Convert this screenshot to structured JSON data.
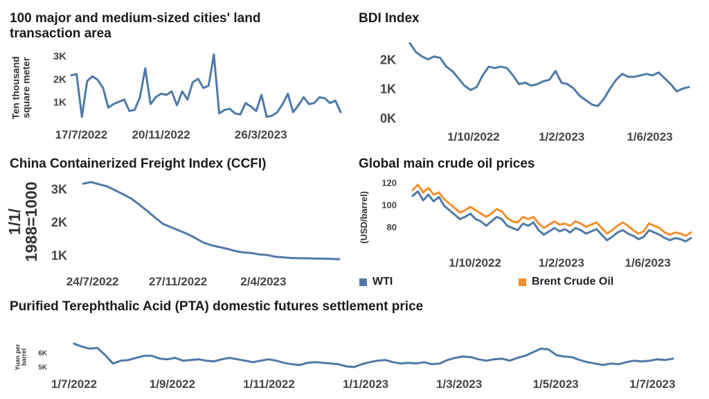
{
  "colors": {
    "blue": "#4e79a7",
    "orange": "#f28e2b"
  },
  "chart_data": [
    {
      "id": "land",
      "type": "line",
      "title": "100 major and medium-sized cities' land transaction area",
      "ylabel": "Ten thousand square meter",
      "ylim": [
        300,
        3300
      ],
      "yticks": [
        1000,
        2000,
        3000
      ],
      "ytick_labels": [
        "1K",
        "2K",
        "3K"
      ],
      "xlim": [
        0,
        54
      ],
      "xticks": [
        2,
        18,
        38
      ],
      "xtick_labels": [
        "17/7/2022",
        "20/11/2022",
        "26/3/2023"
      ],
      "series": [
        {
          "values": [
            2200,
            2250,
            400,
            1950,
            2150,
            2000,
            1650,
            800,
            950,
            1050,
            1150,
            650,
            700,
            1250,
            2500,
            950,
            1250,
            1400,
            1350,
            1500,
            900,
            1500,
            1150,
            1900,
            2050,
            1650,
            1750,
            3100,
            550,
            700,
            750,
            550,
            500,
            1000,
            850,
            650,
            1350,
            400,
            450,
            600,
            950,
            1400,
            600,
            900,
            1250,
            950,
            1000,
            1250,
            1200,
            1000,
            1100,
            600
          ]
        }
      ]
    },
    {
      "id": "bdi",
      "type": "line",
      "title": "BDI Index",
      "ylabel": "",
      "ylim": [
        0,
        2850
      ],
      "yticks": [
        0,
        1000,
        2000
      ],
      "ytick_labels": [
        "0K",
        "1K",
        "2K"
      ],
      "xlim": [
        0,
        57
      ],
      "xticks": [
        13,
        31,
        49
      ],
      "xtick_labels": [
        "1/10/2022",
        "1/2/2023",
        "1/6/2023"
      ],
      "series": [
        {
          "values": [
            2600,
            2300,
            2150,
            2050,
            2150,
            2100,
            1800,
            1650,
            1400,
            1150,
            1000,
            1100,
            1500,
            1800,
            1750,
            1800,
            1750,
            1500,
            1200,
            1250,
            1150,
            1200,
            1300,
            1350,
            1650,
            1250,
            1200,
            1050,
            800,
            650,
            500,
            450,
            700,
            1050,
            1350,
            1550,
            1450,
            1450,
            1500,
            1550,
            1500,
            1600,
            1400,
            1200,
            950,
            1050,
            1100
          ]
        }
      ]
    },
    {
      "id": "ccfi",
      "type": "line",
      "title": "China Containerized Freight Index (CCFI)",
      "ylabel": "1/1/ 1988=1000",
      "ylim": [
        750,
        3350
      ],
      "yticks": [
        1000,
        2000,
        3000
      ],
      "ytick_labels": [
        "1K",
        "2K",
        "3K"
      ],
      "xlim": [
        0,
        54
      ],
      "xticks": [
        2,
        20,
        38
      ],
      "xtick_labels": [
        "24/7/2022",
        "27/11/2022",
        "2/4/2023"
      ],
      "series": [
        {
          "values": [
            3200,
            3250,
            3180,
            3120,
            3000,
            2880,
            2750,
            2570,
            2380,
            2170,
            1980,
            1880,
            1780,
            1680,
            1560,
            1420,
            1340,
            1280,
            1230,
            1160,
            1120,
            1100,
            1060,
            1040,
            990,
            970,
            950,
            945,
            940,
            935,
            930,
            925,
            915
          ]
        }
      ]
    },
    {
      "id": "oil",
      "type": "line",
      "title": "Global main crude oil prices",
      "ylabel": "(USD/barrel)",
      "ylim": [
        62,
        125
      ],
      "yticks": [
        80,
        100,
        120
      ],
      "ytick_labels": [
        "80",
        "100",
        "120"
      ],
      "xlim": [
        0,
        58
      ],
      "xticks": [
        13,
        31,
        49
      ],
      "xtick_labels": [
        "1/10/2022",
        "1/2/2023",
        "1/6/2023"
      ],
      "legend": [
        "WTI",
        "Brent Crude Oil"
      ],
      "series": [
        {
          "name": "WTI",
          "values": [
            109,
            113,
            105,
            110,
            104,
            108,
            100,
            96,
            92,
            88,
            90,
            93,
            88,
            86,
            82,
            86,
            90,
            88,
            82,
            80,
            78,
            84,
            82,
            85,
            78,
            74,
            77,
            80,
            77,
            79,
            76,
            80,
            78,
            75,
            77,
            79,
            74,
            69,
            72,
            76,
            78,
            75,
            73,
            70,
            72,
            78,
            76,
            74,
            71,
            69,
            71,
            70,
            68,
            71
          ]
        },
        {
          "name": "Brent Crude Oil",
          "values": [
            114,
            119,
            112,
            116,
            110,
            112,
            106,
            102,
            98,
            94,
            96,
            99,
            96,
            93,
            90,
            93,
            97,
            95,
            89,
            86,
            85,
            90,
            88,
            90,
            84,
            80,
            83,
            86,
            83,
            84,
            82,
            86,
            84,
            81,
            83,
            85,
            80,
            75,
            78,
            82,
            85,
            82,
            78,
            75,
            77,
            84,
            82,
            80,
            76,
            74,
            76,
            75,
            73,
            76
          ]
        }
      ]
    },
    {
      "id": "pta",
      "type": "line",
      "title": "Purified Terephthalic Acid (PTA) domestic futures settlement price",
      "ylabel": "Yuan per barrel",
      "ylim": [
        4850,
        7200
      ],
      "yticks": [
        5000,
        6000
      ],
      "ytick_labels": [
        "5K",
        "6K"
      ],
      "xlim": [
        0,
        378
      ],
      "xticks": [
        0,
        62,
        123,
        184,
        243,
        304,
        365
      ],
      "xtick_labels": [
        "1/7/2022",
        "1/9/2022",
        "1/11/2022",
        "1/1/2023",
        "1/3/2023",
        "1/5/2023",
        "1/7/2023"
      ],
      "series": [
        {
          "values": [
            6700,
            6500,
            6350,
            6400,
            5900,
            5300,
            5500,
            5550,
            5700,
            5850,
            5850,
            5650,
            5600,
            5700,
            5500,
            5550,
            5600,
            5500,
            5450,
            5600,
            5700,
            5600,
            5500,
            5400,
            5500,
            5600,
            5500,
            5350,
            5250,
            5200,
            5350,
            5400,
            5350,
            5300,
            5250,
            5100,
            5050,
            5250,
            5400,
            5500,
            5550,
            5400,
            5300,
            5350,
            5300,
            5400,
            5250,
            5300,
            5550,
            5700,
            5800,
            5750,
            5600,
            5500,
            5600,
            5650,
            5500,
            5700,
            5850,
            6100,
            6350,
            6300,
            5900,
            5800,
            5750,
            5550,
            5400,
            5300,
            5200,
            5300,
            5250,
            5400,
            5500,
            5450,
            5500,
            5600,
            5550,
            5650
          ]
        }
      ]
    }
  ]
}
